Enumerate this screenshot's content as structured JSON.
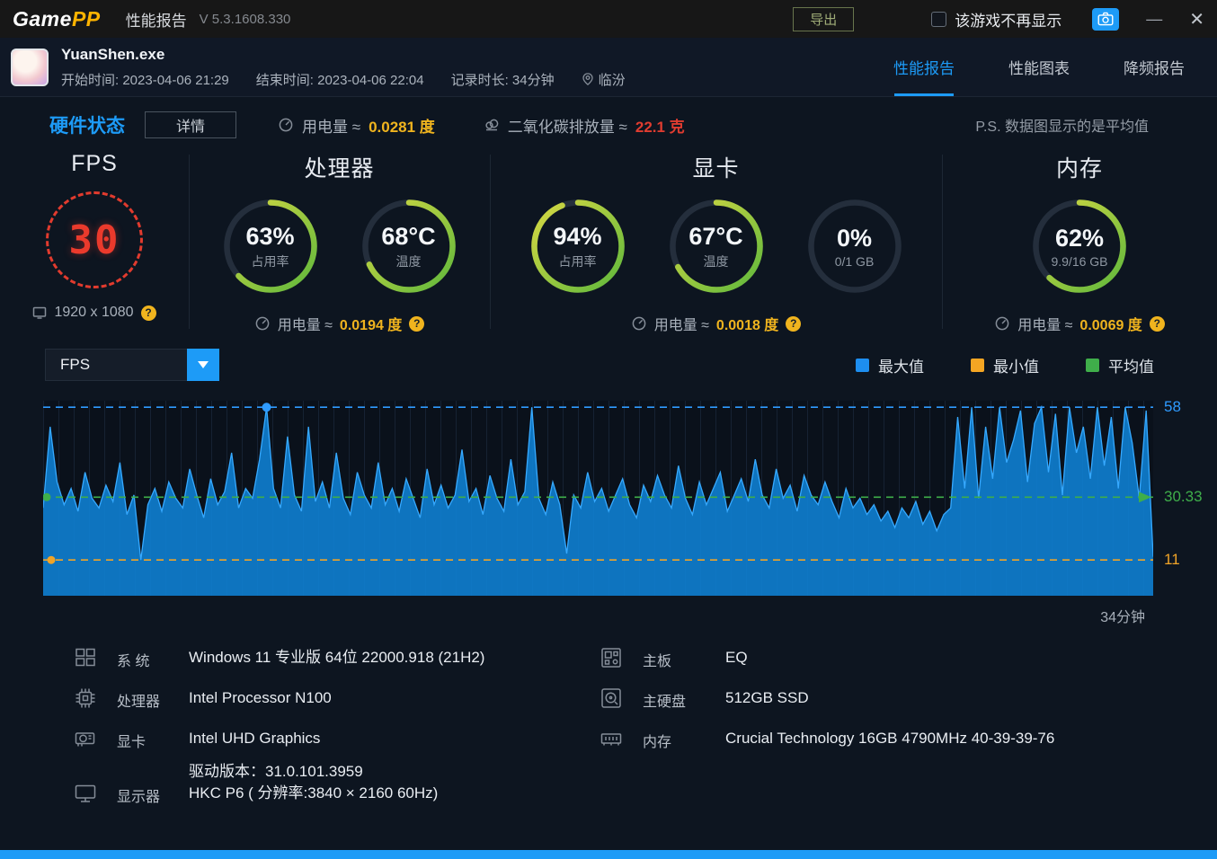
{
  "titlebar": {
    "logo_game": "Game",
    "logo_pp": "PP",
    "page_title": "性能报告",
    "version": "V 5.3.1608.330",
    "export_label": "导出",
    "hide_checkbox_label": "该游戏不再显示",
    "minimize_glyph": "—",
    "close_glyph": "✕"
  },
  "header": {
    "process_name": "YuanShen.exe",
    "start_time": "开始时间: 2023-04-06 21:29",
    "end_time": "结束时间: 2023-04-06 22:04",
    "duration": "记录时长: 34分钟",
    "location": "临汾",
    "tabs": [
      {
        "label": "性能报告",
        "active": true
      },
      {
        "label": "性能图表",
        "active": false
      },
      {
        "label": "降频报告",
        "active": false
      }
    ]
  },
  "status_bar": {
    "section_title": "硬件状态",
    "detail_button": "详情",
    "power_label": "用电量 ≈",
    "power_value": "0.0281 度",
    "co2_label": "二氧化碳排放量 ≈",
    "co2_value": "22.1 克",
    "note": "P.S. 数据图显示的是平均值",
    "help_glyph": "?"
  },
  "metrics": {
    "fps": {
      "title": "FPS",
      "value": "30",
      "resolution": "1920 x 1080"
    },
    "cpu": {
      "title": "处理器",
      "gauges": [
        {
          "value": "63%",
          "label": "占用率",
          "pct": 63
        },
        {
          "value": "68°C",
          "label": "温度",
          "pct": 68
        }
      ],
      "power_label": "用电量 ≈",
      "power_value": "0.0194 度"
    },
    "gpu": {
      "title": "显卡",
      "gauges": [
        {
          "value": "94%",
          "label": "占用率",
          "pct": 94
        },
        {
          "value": "67°C",
          "label": "温度",
          "pct": 67
        },
        {
          "value": "0%",
          "label": "0/1 GB",
          "pct": 0
        }
      ],
      "power_label": "用电量 ≈",
      "power_value": "0.0018 度"
    },
    "memory": {
      "title": "内存",
      "gauges": [
        {
          "value": "62%",
          "label": "9.9/16 GB",
          "pct": 62
        }
      ],
      "power_label": "用电量 ≈",
      "power_value": "0.0069 度"
    }
  },
  "chart_controls": {
    "selector_value": "FPS"
  },
  "chart_data": {
    "type": "area",
    "series_name": "FPS",
    "ylim": [
      0,
      60
    ],
    "duration_label": "34分钟",
    "lines": {
      "max": 58,
      "avg": 30.33,
      "min": 11
    },
    "line_labels": {
      "max": "58",
      "avg": "30.33",
      "min": "11"
    },
    "line_colors": {
      "max": "#2f9bff",
      "avg": "#3fae4a",
      "min": "#f0a428"
    },
    "legend": [
      {
        "label": "最大值",
        "color": "#1d8ef0"
      },
      {
        "label": "最小值",
        "color": "#f5a623"
      },
      {
        "label": "平均值",
        "color": "#3fae4a"
      }
    ],
    "values": [
      27,
      52,
      35,
      28,
      33,
      26,
      38,
      30,
      27,
      34,
      29,
      41,
      25,
      31,
      11,
      28,
      33,
      26,
      35,
      30,
      27,
      39,
      31,
      24,
      36,
      28,
      32,
      44,
      27,
      33,
      30,
      42,
      58,
      33,
      27,
      49,
      31,
      26,
      52,
      29,
      35,
      27,
      44,
      30,
      25,
      38,
      31,
      27,
      41,
      28,
      33,
      26,
      36,
      30,
      24,
      39,
      28,
      34,
      27,
      31,
      45,
      29,
      33,
      25,
      37,
      30,
      26,
      42,
      28,
      32,
      58,
      30,
      25,
      35,
      28,
      13,
      31,
      27,
      38,
      29,
      33,
      26,
      31,
      36,
      28,
      24,
      34,
      29,
      37,
      31,
      27,
      40,
      30,
      25,
      35,
      28,
      33,
      38,
      26,
      31,
      36,
      29,
      42,
      31,
      27,
      39,
      30,
      34,
      26,
      37,
      31,
      28,
      35,
      29,
      24,
      33,
      27,
      30,
      25,
      28,
      23,
      26,
      21,
      27,
      24,
      29,
      22,
      26,
      20,
      25,
      27,
      55,
      33,
      58,
      30,
      52,
      36,
      58,
      41,
      48,
      57,
      35,
      53,
      58,
      38,
      56,
      31,
      58,
      44,
      52,
      36,
      58,
      40,
      55,
      33,
      58,
      47,
      30,
      57,
      12
    ]
  },
  "system_info": {
    "left": [
      {
        "label": "系 统",
        "value": "Windows 11 专业版 64位 22000.918 (21H2)"
      },
      {
        "label": "处理器",
        "value": "Intel Processor N100"
      },
      {
        "label": "显卡",
        "value": "Intel UHD Graphics",
        "sub": "驱动版本：31.0.101.3959"
      },
      {
        "label": "显示器",
        "value": "HKC P6 ( 分辨率:3840 × 2160 60Hz)"
      }
    ],
    "right": [
      {
        "label": "主板",
        "value": "EQ"
      },
      {
        "label": "主硬盘",
        "value": "512GB SSD"
      },
      {
        "label": "内存",
        "value": "Crucial Technology 16GB 4790MHz 40-39-39-76"
      }
    ]
  },
  "colors": {
    "accent": "#1d9bf7",
    "value_yellow": "#f0b41e",
    "co2_red": "#e03c30",
    "fps_red": "#ea3a2c"
  }
}
